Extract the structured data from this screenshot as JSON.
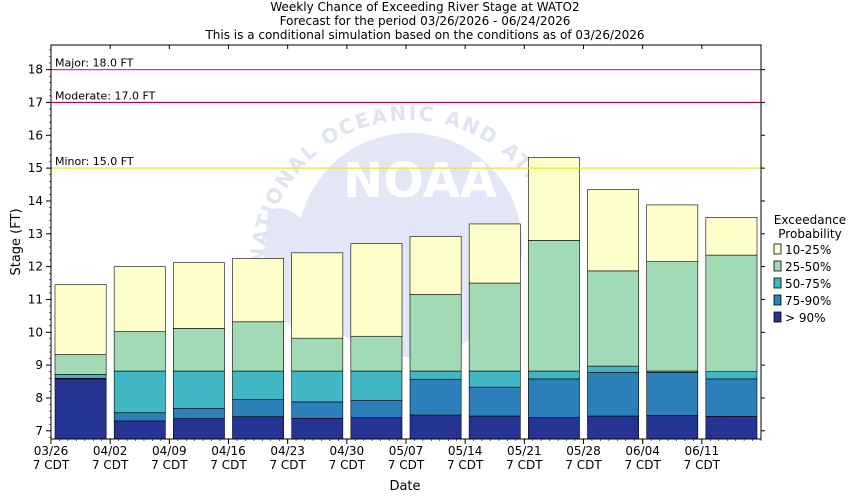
{
  "chart_data": {
    "type": "bar",
    "title": "Weekly Chance of Exceeding River Stage at WATO2",
    "subtitle": "Forecast for the period 03/26/2026 - 06/24/2026",
    "subtitle2": "This is a conditional simulation based on the conditions as of 03/26/2026",
    "xlabel": "Date",
    "ylabel": "Stage (FT)",
    "ylim": [
      6.75,
      18.75
    ],
    "y_ticks": [
      7,
      8,
      9,
      10,
      11,
      12,
      13,
      14,
      15,
      16,
      17,
      18
    ],
    "x_tick_labels": [
      {
        "date": "03/26",
        "tz": "7 CDT"
      },
      {
        "date": "04/02",
        "tz": "7 CDT"
      },
      {
        "date": "04/09",
        "tz": "7 CDT"
      },
      {
        "date": "04/16",
        "tz": "7 CDT"
      },
      {
        "date": "04/23",
        "tz": "7 CDT"
      },
      {
        "date": "04/30",
        "tz": "7 CDT"
      },
      {
        "date": "05/07",
        "tz": "7 CDT"
      },
      {
        "date": "05/14",
        "tz": "7 CDT"
      },
      {
        "date": "05/21",
        "tz": "7 CDT"
      },
      {
        "date": "05/28",
        "tz": "7 CDT"
      },
      {
        "date": "06/04",
        "tz": "7 CDT"
      },
      {
        "date": "06/11",
        "tz": "7 CDT"
      }
    ],
    "thresholds": [
      {
        "label": "Major: 18.0 FT",
        "value": 18.0,
        "color": "#cc33cc"
      },
      {
        "label": "Moderate: 17.0 FT",
        "value": 17.0,
        "color": "#cc0033"
      },
      {
        "label": "Minor: 15.0 FT",
        "value": 15.0,
        "color": "#e6e633"
      }
    ],
    "legend": {
      "title_line1": "Exceedance",
      "title_line2": "Probability",
      "placement": "right"
    },
    "series": [
      {
        "name": "10-25%",
        "color": "#ffffcc",
        "values": [
          11.45,
          12.0,
          12.12,
          12.25,
          12.42,
          12.7,
          12.92,
          13.3,
          15.33,
          14.35,
          13.88,
          13.5
        ]
      },
      {
        "name": "25-50%",
        "color": "#a1dab4",
        "values": [
          9.32,
          10.02,
          10.12,
          10.32,
          9.82,
          9.88,
          11.15,
          11.5,
          12.8,
          11.87,
          12.15,
          12.35
        ]
      },
      {
        "name": "50-75%",
        "color": "#41b6c4",
        "values": [
          8.72,
          8.82,
          8.82,
          8.82,
          8.82,
          8.82,
          8.82,
          8.82,
          8.82,
          8.97,
          8.82,
          8.8
        ]
      },
      {
        "name": "75-90%",
        "color": "#2c7fb8",
        "values": [
          8.6,
          7.55,
          7.68,
          7.95,
          7.88,
          7.92,
          8.57,
          8.33,
          8.58,
          8.78,
          8.78,
          8.58
        ]
      },
      {
        "name": "> 90%",
        "color": "#253494",
        "values": [
          8.58,
          7.3,
          7.37,
          7.43,
          7.38,
          7.4,
          7.48,
          7.45,
          7.4,
          7.45,
          7.47,
          7.44
        ]
      }
    ],
    "grid": false,
    "watermark_text": "NATIONAL OCEANIC AND ATMOSPHERIC ADMINISTRATION",
    "watermark_logo": "NOAA"
  }
}
